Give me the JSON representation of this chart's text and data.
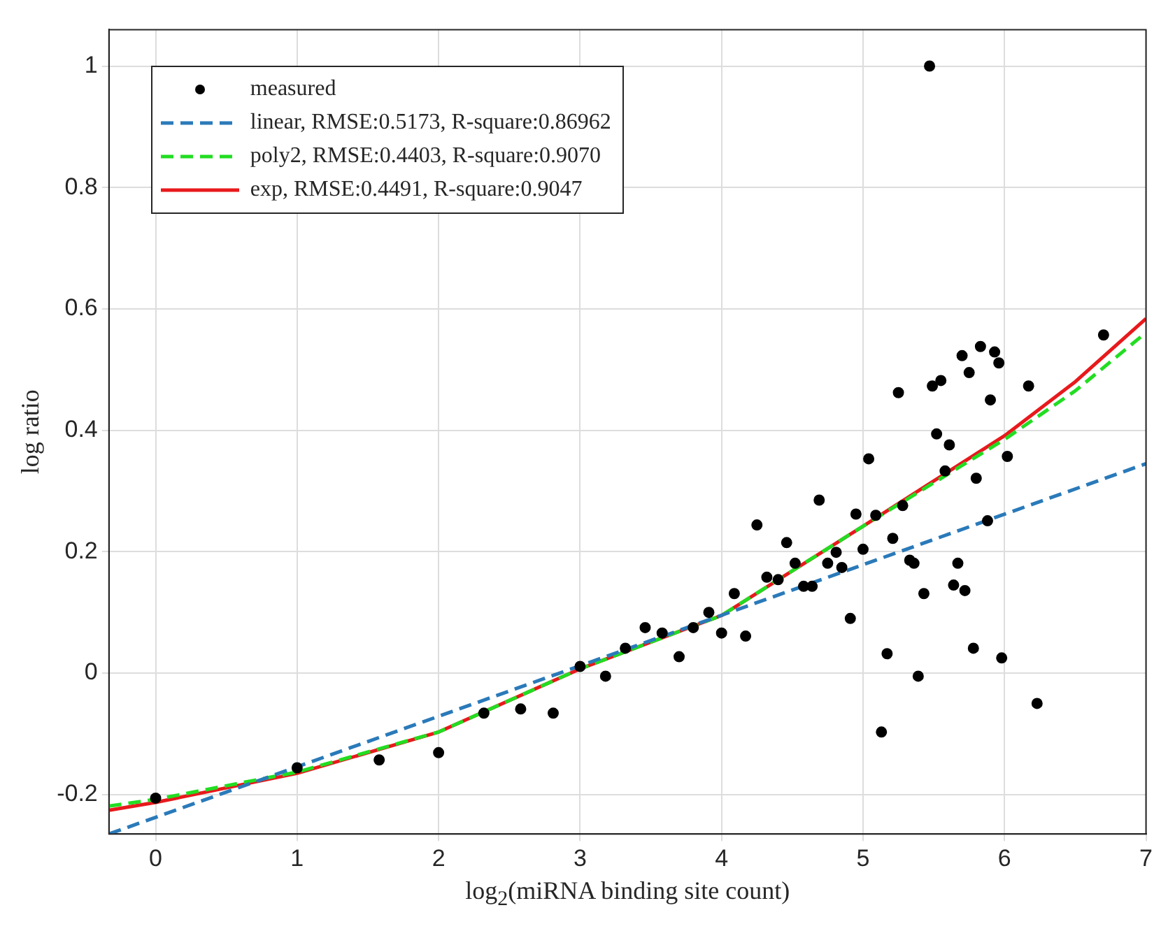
{
  "chart_data": {
    "type": "scatter",
    "xlabel": "log$_{2}$(miRNA binding site count)",
    "ylabel": "log ratio",
    "xlim": [
      -0.33,
      7
    ],
    "ylim": [
      -0.265,
      1.06
    ],
    "xticks": [
      0,
      1,
      2,
      3,
      4,
      5,
      6,
      7
    ],
    "yticks": [
      -0.2,
      0,
      0.2,
      0.4,
      0.6,
      0.8,
      1
    ],
    "grid": true,
    "legend": "top left",
    "series": [
      {
        "name": "measured",
        "marker": "circle",
        "color": "#000000",
        "x": [
          0,
          1,
          1.58,
          2,
          2.32,
          2.58,
          2.81,
          3.0,
          3.18,
          3.32,
          3.46,
          3.58,
          3.7,
          3.8,
          3.91,
          4.0,
          4.09,
          4.17,
          4.25,
          4.32,
          4.4,
          4.46,
          4.52,
          4.58,
          4.64,
          4.69,
          4.75,
          4.81,
          4.85,
          4.91,
          4.95,
          5.0,
          5.04,
          5.09,
          5.13,
          5.17,
          5.21,
          5.25,
          5.28,
          5.33,
          5.36,
          5.39,
          5.43,
          5.47,
          5.49,
          5.52,
          5.55,
          5.58,
          5.61,
          5.64,
          5.67,
          5.7,
          5.72,
          5.75,
          5.78,
          5.8,
          5.83,
          5.88,
          5.9,
          5.93,
          5.96,
          5.98,
          6.02,
          6.17,
          6.23,
          6.7
        ],
        "values": [
          -0.206,
          -0.156,
          -0.143,
          -0.131,
          -0.066,
          -0.059,
          -0.066,
          0.011,
          -0.005,
          0.041,
          0.075,
          0.066,
          0.027,
          0.075,
          0.1,
          0.066,
          0.131,
          0.061,
          0.244,
          0.158,
          0.154,
          0.215,
          0.181,
          0.143,
          0.143,
          0.285,
          0.181,
          0.199,
          0.174,
          0.09,
          0.262,
          0.204,
          0.353,
          0.26,
          -0.097,
          0.032,
          0.222,
          0.462,
          0.276,
          0.186,
          0.181,
          -0.005,
          0.131,
          1.0,
          0.473,
          0.394,
          0.482,
          0.333,
          0.376,
          0.145,
          0.181,
          0.523,
          0.136,
          0.495,
          0.041,
          0.321,
          0.538,
          0.251,
          0.45,
          0.529,
          0.511,
          0.025,
          0.357,
          0.473,
          -0.05,
          0.557
        ]
      },
      {
        "name": "linear, RMSE:0.5173, R-square:0.86962",
        "type": "line",
        "marker": "none",
        "line_style": "dashed",
        "color": "#2a7ab9",
        "x": [
          -0.33,
          7
        ],
        "values": [
          -0.265,
          0.345
        ]
      },
      {
        "name": "poly2, RMSE:0.4403, R-square:0.9070",
        "type": "line",
        "marker": "none",
        "line_style": "dashed",
        "color": "#22dd22",
        "x": [
          -0.33,
          0,
          1,
          2,
          3,
          4,
          5,
          6,
          6.5,
          7
        ],
        "values": [
          -0.219,
          -0.208,
          -0.163,
          -0.097,
          0.007,
          0.095,
          0.242,
          0.385,
          0.465,
          0.561
        ]
      },
      {
        "name": "exp, RMSE:0.4491, R-square:0.9047",
        "type": "line",
        "marker": "none",
        "line_style": "solid",
        "color": "#e8191c",
        "x": [
          -0.33,
          0,
          1,
          2,
          3,
          4,
          5,
          6,
          6.5,
          7
        ],
        "values": [
          -0.226,
          -0.213,
          -0.165,
          -0.097,
          0.007,
          0.095,
          0.242,
          0.391,
          0.48,
          0.584
        ]
      }
    ]
  }
}
